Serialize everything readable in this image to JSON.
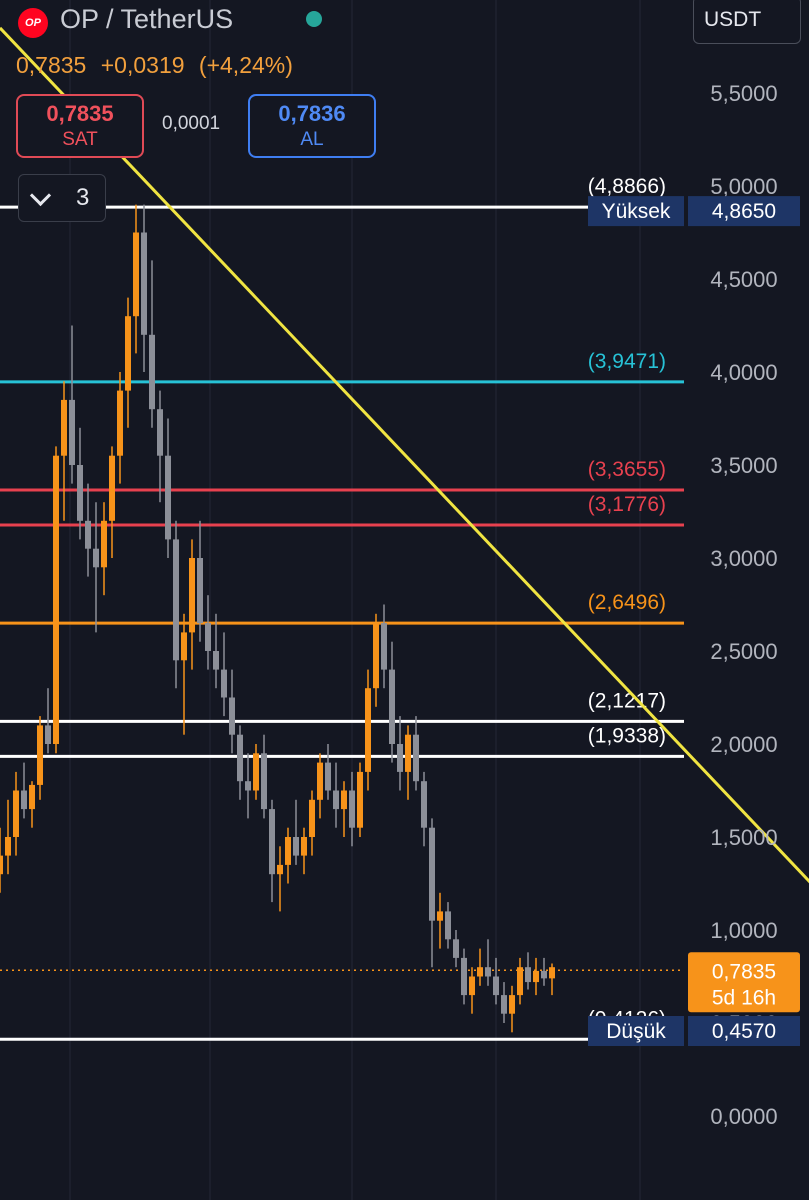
{
  "header": {
    "logo_text": "OP",
    "pair": "OP / TetherUS",
    "currency": "USDT",
    "price": "0,7835",
    "change": "+0,0319",
    "change_pct": "(+4,24%)",
    "sell_price": "0,7835",
    "sell_label": "SAT",
    "spread": "0,0001",
    "buy_price": "0,7836",
    "buy_label": "AL",
    "indicator_count": "3"
  },
  "colors": {
    "background": "#141722",
    "up": "#f7931a",
    "down": "#8c8f98",
    "trendline": "#f0e442",
    "white_level": "#ffffff",
    "cyan_level": "#27c2d6",
    "red_level": "#e8414f",
    "orange_level": "#f7931a",
    "axis_tag": "#1e3566",
    "price_tag": "#f7931a"
  },
  "chart_data": {
    "type": "candlestick",
    "ylim": [
      -0.4,
      5.8
    ],
    "y_ticks": [
      "0,0000",
      "0,5000",
      "1,0000",
      "1,5000",
      "2,0000",
      "2,5000",
      "3,0000",
      "3,5000",
      "4,0000",
      "4,5000",
      "5,0000",
      "5,5000"
    ],
    "y_tick_values": [
      0,
      0.5,
      1,
      1.5,
      2,
      2.5,
      3,
      3.5,
      4,
      4.5,
      5,
      5.5
    ],
    "levels": [
      {
        "value": 4.8866,
        "label": "(4,8866)",
        "color": "white"
      },
      {
        "value": 3.9471,
        "label": "(3,9471)",
        "color": "cyan"
      },
      {
        "value": 3.3655,
        "label": "(3,3655)",
        "color": "red"
      },
      {
        "value": 3.1776,
        "label": "(3,1776)",
        "color": "red"
      },
      {
        "value": 2.6496,
        "label": "(2,6496)",
        "color": "orange"
      },
      {
        "value": 2.1217,
        "label": "(2,1217)",
        "color": "white"
      },
      {
        "value": 1.9338,
        "label": "(1,9338)",
        "color": "white"
      },
      {
        "value": 0.4126,
        "label": "(0,4126)",
        "color": "white"
      }
    ],
    "high_tag": {
      "label": "Yüksek",
      "value": "4,8650",
      "y": 4.865
    },
    "low_tag": {
      "label": "Düşük",
      "value": "0,4570",
      "y": 0.457
    },
    "last_price": {
      "value": "0,7835",
      "y": 0.7835,
      "countdown": "5d 16h"
    },
    "trendline": {
      "from": [
        0,
        5.85
      ],
      "to": [
        140,
        -0.5
      ]
    },
    "candles": [
      [
        1.3,
        1.55,
        1.2,
        1.4
      ],
      [
        1.4,
        1.7,
        1.3,
        1.5
      ],
      [
        1.5,
        1.85,
        1.4,
        1.75
      ],
      [
        1.75,
        1.9,
        1.6,
        1.65
      ],
      [
        1.65,
        1.8,
        1.55,
        1.78
      ],
      [
        1.78,
        2.15,
        1.7,
        2.1
      ],
      [
        2.1,
        2.3,
        1.95,
        2.0
      ],
      [
        2.0,
        3.6,
        1.95,
        3.55
      ],
      [
        3.55,
        3.95,
        3.2,
        3.85
      ],
      [
        3.85,
        4.25,
        3.4,
        3.5
      ],
      [
        3.5,
        3.7,
        3.1,
        3.2
      ],
      [
        3.2,
        3.4,
        2.9,
        3.05
      ],
      [
        3.05,
        3.3,
        2.6,
        2.95
      ],
      [
        2.95,
        3.3,
        2.8,
        3.2
      ],
      [
        3.2,
        3.6,
        3.0,
        3.55
      ],
      [
        3.55,
        4.0,
        3.4,
        3.9
      ],
      [
        3.9,
        4.4,
        3.7,
        4.3
      ],
      [
        4.3,
        4.9,
        4.1,
        4.75
      ],
      [
        4.75,
        4.9,
        4.0,
        4.2
      ],
      [
        4.2,
        4.6,
        3.7,
        3.8
      ],
      [
        3.8,
        3.9,
        3.3,
        3.55
      ],
      [
        3.55,
        3.75,
        3.0,
        3.1
      ],
      [
        3.1,
        3.2,
        2.3,
        2.45
      ],
      [
        2.45,
        2.7,
        2.05,
        2.6
      ],
      [
        2.6,
        3.1,
        2.4,
        3.0
      ],
      [
        3.0,
        3.2,
        2.55,
        2.65
      ],
      [
        2.65,
        2.8,
        2.4,
        2.5
      ],
      [
        2.5,
        2.7,
        2.3,
        2.4
      ],
      [
        2.4,
        2.6,
        2.15,
        2.25
      ],
      [
        2.25,
        2.4,
        1.95,
        2.05
      ],
      [
        2.05,
        2.1,
        1.7,
        1.8
      ],
      [
        1.8,
        1.95,
        1.6,
        1.75
      ],
      [
        1.75,
        2.0,
        1.7,
        1.95
      ],
      [
        1.95,
        2.05,
        1.6,
        1.65
      ],
      [
        1.65,
        1.7,
        1.15,
        1.3
      ],
      [
        1.3,
        1.45,
        1.1,
        1.35
      ],
      [
        1.35,
        1.55,
        1.25,
        1.5
      ],
      [
        1.5,
        1.7,
        1.35,
        1.4
      ],
      [
        1.4,
        1.55,
        1.3,
        1.5
      ],
      [
        1.5,
        1.75,
        1.4,
        1.7
      ],
      [
        1.7,
        1.95,
        1.6,
        1.9
      ],
      [
        1.9,
        2.0,
        1.7,
        1.75
      ],
      [
        1.75,
        1.9,
        1.55,
        1.65
      ],
      [
        1.65,
        1.8,
        1.5,
        1.75
      ],
      [
        1.75,
        1.85,
        1.45,
        1.55
      ],
      [
        1.55,
        1.9,
        1.5,
        1.85
      ],
      [
        1.85,
        2.4,
        1.75,
        2.3
      ],
      [
        2.3,
        2.7,
        2.2,
        2.65
      ],
      [
        2.65,
        2.75,
        2.3,
        2.4
      ],
      [
        2.4,
        2.55,
        1.9,
        2.0
      ],
      [
        2.0,
        2.15,
        1.75,
        1.85
      ],
      [
        1.85,
        2.1,
        1.7,
        2.05
      ],
      [
        2.05,
        2.15,
        1.75,
        1.8
      ],
      [
        1.8,
        1.85,
        1.45,
        1.55
      ],
      [
        1.55,
        1.6,
        0.8,
        1.05
      ],
      [
        1.05,
        1.2,
        0.9,
        1.1
      ],
      [
        1.1,
        1.15,
        0.9,
        0.95
      ],
      [
        0.95,
        1.0,
        0.8,
        0.85
      ],
      [
        0.85,
        0.9,
        0.6,
        0.65
      ],
      [
        0.65,
        0.8,
        0.55,
        0.75
      ],
      [
        0.75,
        0.9,
        0.7,
        0.8
      ],
      [
        0.8,
        0.95,
        0.7,
        0.75
      ],
      [
        0.75,
        0.85,
        0.6,
        0.65
      ],
      [
        0.65,
        0.72,
        0.5,
        0.55
      ],
      [
        0.55,
        0.7,
        0.45,
        0.65
      ],
      [
        0.65,
        0.85,
        0.6,
        0.8
      ],
      [
        0.8,
        0.88,
        0.68,
        0.72
      ],
      [
        0.72,
        0.85,
        0.65,
        0.78
      ],
      [
        0.78,
        0.85,
        0.7,
        0.74
      ],
      [
        0.74,
        0.82,
        0.65,
        0.8
      ]
    ]
  }
}
